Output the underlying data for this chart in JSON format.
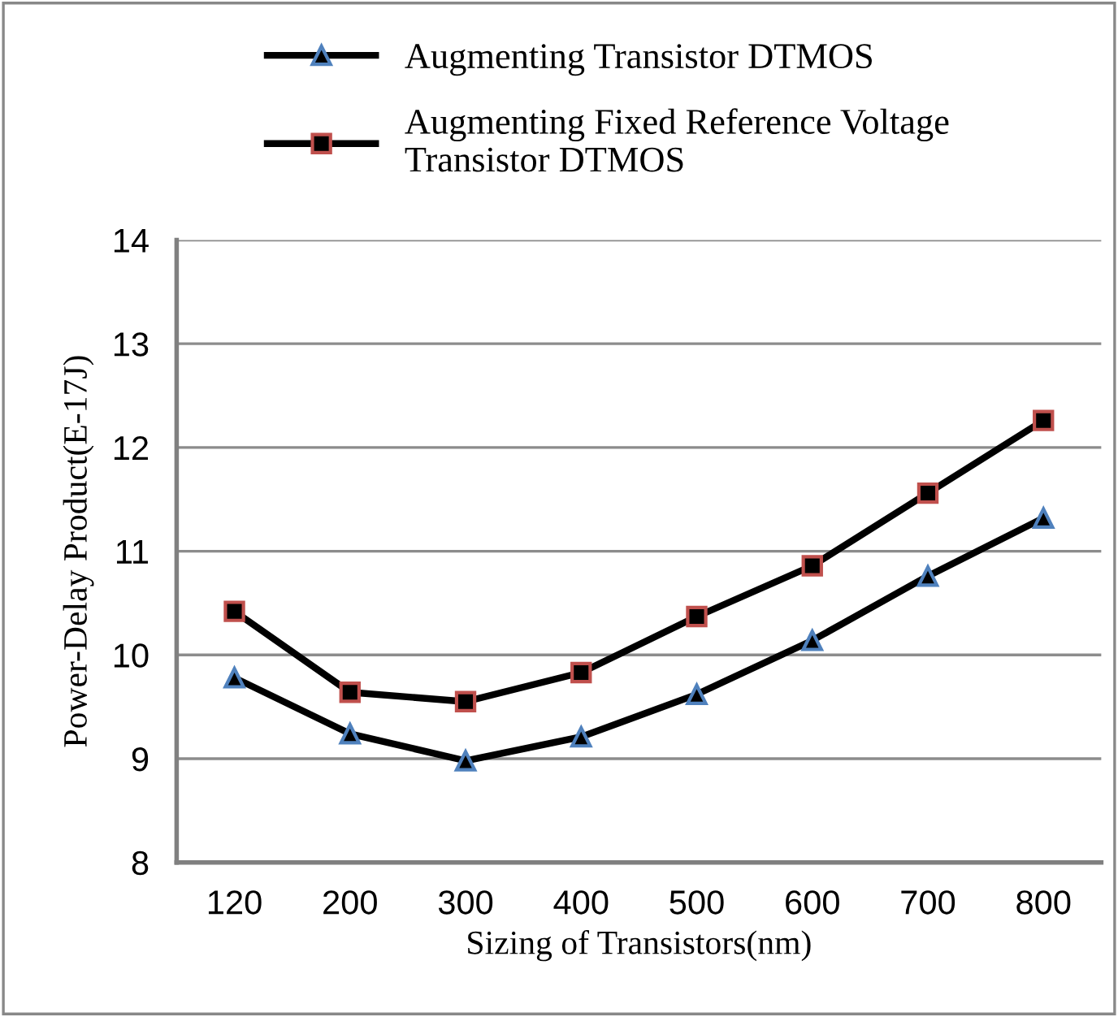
{
  "chart_data": {
    "type": "line",
    "xlabel": "Sizing of Transistors(nm)",
    "ylabel": "Power-Delay Product(E-17J)",
    "categories": [
      "120",
      "200",
      "300",
      "400",
      "500",
      "600",
      "700",
      "800"
    ],
    "series": [
      {
        "name": "Augmenting Transistor DTMOS",
        "color": "#000000",
        "marker": "triangle",
        "values": [
          9.78,
          9.24,
          8.98,
          9.21,
          9.62,
          10.14,
          10.76,
          11.32
        ]
      },
      {
        "name": "Augmenting Fixed Reference Voltage\nTransistor DTMOS",
        "color": "#000000",
        "marker": "square",
        "values": [
          10.42,
          9.64,
          9.55,
          9.83,
          10.37,
          10.86,
          11.56,
          12.26
        ]
      }
    ],
    "ylim": [
      8,
      14
    ],
    "yticks": [
      8,
      9,
      10,
      11,
      12,
      13,
      14
    ],
    "grid": "y",
    "legend": "top",
    "line_style": "solid"
  }
}
